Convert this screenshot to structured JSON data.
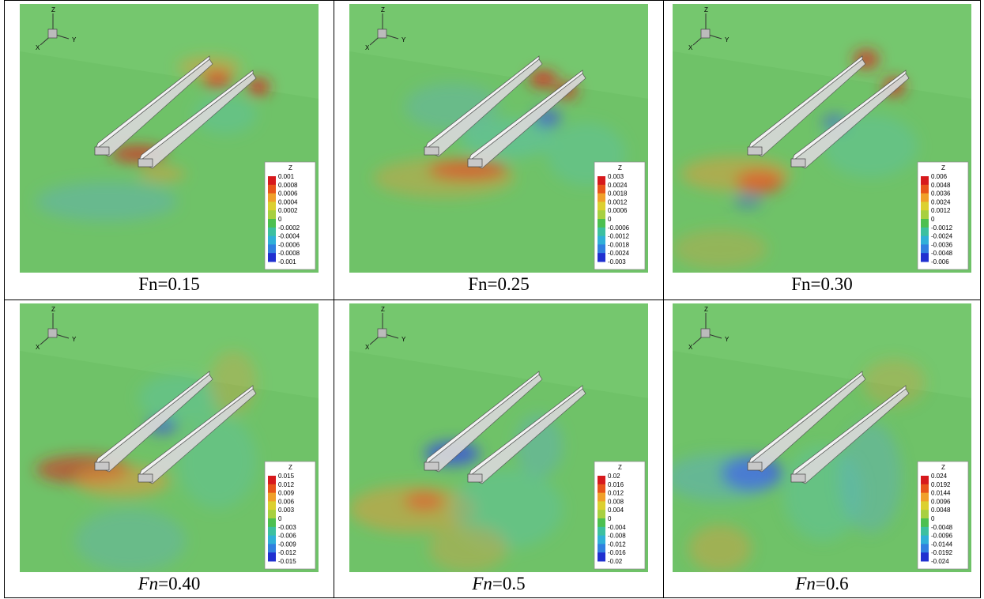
{
  "panels": [
    {
      "caption": {
        "symbol": "Fn",
        "italic": false,
        "value": "=0.15"
      },
      "axes": {
        "z": "Z",
        "x": "X",
        "y": "Y"
      },
      "legend": {
        "title": "Z",
        "labels": [
          "0.001",
          "0.0008",
          "0.0006",
          "0.0004",
          "0.0002",
          "0",
          "-0.0002",
          "-0.0004",
          "-0.0006",
          "-0.0008",
          "-0.001"
        ]
      }
    },
    {
      "caption": {
        "symbol": "Fn",
        "italic": false,
        "value": "=0.25"
      },
      "axes": {
        "z": "Z",
        "x": "X",
        "y": "Y"
      },
      "legend": {
        "title": "Z",
        "labels": [
          "0.003",
          "0.0024",
          "0.0018",
          "0.0012",
          "0.0006",
          "0",
          "-0.0006",
          "-0.0012",
          "-0.0018",
          "-0.0024",
          "-0.003"
        ]
      }
    },
    {
      "caption": {
        "symbol": "Fn",
        "italic": false,
        "value": "=0.30"
      },
      "axes": {
        "z": "Z",
        "x": "X",
        "y": "Y"
      },
      "legend": {
        "title": "Z",
        "labels": [
          "0.006",
          "0.0048",
          "0.0036",
          "0.0024",
          "0.0012",
          "0",
          "-0.0012",
          "-0.0024",
          "-0.0036",
          "-0.0048",
          "-0.006"
        ]
      }
    },
    {
      "caption": {
        "symbol": "Fn",
        "italic": true,
        "value": "=0.40"
      },
      "axes": {
        "z": "Z",
        "x": "X",
        "y": "Y"
      },
      "legend": {
        "title": "Z",
        "labels": [
          "0.015",
          "0.012",
          "0.009",
          "0.006",
          "0.003",
          "0",
          "-0.003",
          "-0.006",
          "-0.009",
          "-0.012",
          "-0.015"
        ]
      }
    },
    {
      "caption": {
        "symbol": "Fn",
        "italic": true,
        "value": "=0.5"
      },
      "axes": {
        "z": "Z",
        "x": "X",
        "y": "Y"
      },
      "legend": {
        "title": "Z",
        "labels": [
          "0.02",
          "0.016",
          "0.012",
          "0.008",
          "0.004",
          "0",
          "-0.004",
          "-0.008",
          "-0.012",
          "-0.016",
          "-0.02"
        ]
      }
    },
    {
      "caption": {
        "symbol": "Fn",
        "italic": true,
        "value": "=0.6"
      },
      "axes": {
        "z": "Z",
        "x": "X",
        "y": "Y"
      },
      "legend": {
        "title": "Z",
        "labels": [
          "0.024",
          "0.0192",
          "0.0144",
          "0.0096",
          "0.0048",
          "0",
          "-0.0048",
          "-0.0096",
          "-0.0144",
          "-0.0192",
          "-0.024"
        ]
      }
    }
  ]
}
